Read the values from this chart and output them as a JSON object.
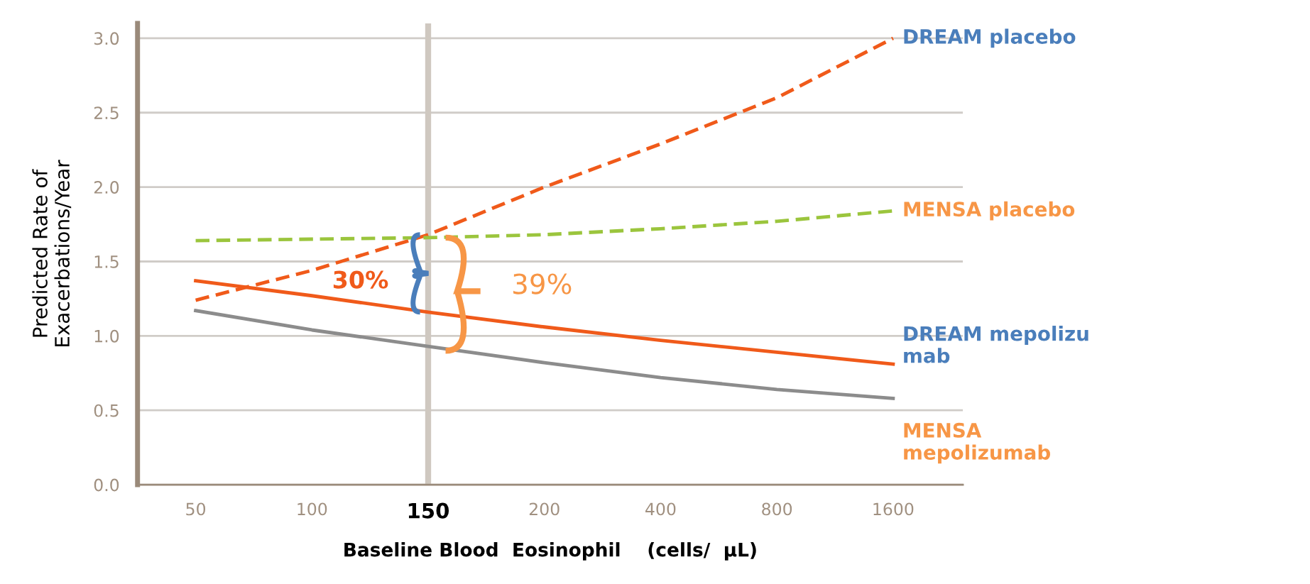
{
  "chart_data": {
    "type": "line",
    "ylabel": "Predicted Rate of\nExacerbations/Year",
    "xlabel": "Baseline Blood  Eosinophil    (cells/  µL)",
    "categories": [
      "50",
      "100",
      "150",
      "200",
      "400",
      "800",
      "1600"
    ],
    "ylim": [
      0,
      3.1
    ],
    "yticks": [
      {
        "value": 0,
        "label": "0.0"
      },
      {
        "value": 0.5,
        "label": "0.5"
      },
      {
        "value": 1,
        "label": "1.0"
      },
      {
        "value": 1.5,
        "label": "1.5"
      },
      {
        "value": 2,
        "label": "2.0"
      },
      {
        "value": 2.5,
        "label": "2.5"
      },
      {
        "value": 3,
        "label": "3.0"
      }
    ],
    "grid": "y",
    "series": [
      {
        "name": "DREAM placebo",
        "color": "#f05a1a",
        "line_style": "dashed",
        "values": [
          1.24,
          1.44,
          1.68,
          2.0,
          2.29,
          2.6,
          3.0
        ]
      },
      {
        "name": "MENSA placebo",
        "color": "#9bc53d",
        "line_style": "dashed",
        "values": [
          1.64,
          1.65,
          1.66,
          1.68,
          1.72,
          1.77,
          1.84
        ]
      },
      {
        "name": "DREAM mepolizu\nmab",
        "color": "#f05a1a",
        "line_style": "solid",
        "values": [
          1.37,
          1.27,
          1.16,
          1.06,
          0.97,
          0.89,
          0.81
        ]
      },
      {
        "name": "MENSA\nmepolizumab",
        "color": "#8c8c8c",
        "line_style": "solid",
        "values": [
          1.17,
          1.04,
          0.93,
          0.82,
          0.72,
          0.64,
          0.58
        ]
      }
    ],
    "ref_lines": [
      {
        "axis": "x",
        "value": "150",
        "label": null,
        "color": "#cfc8c0"
      }
    ],
    "annotations": [
      "30%",
      "39%"
    ]
  }
}
